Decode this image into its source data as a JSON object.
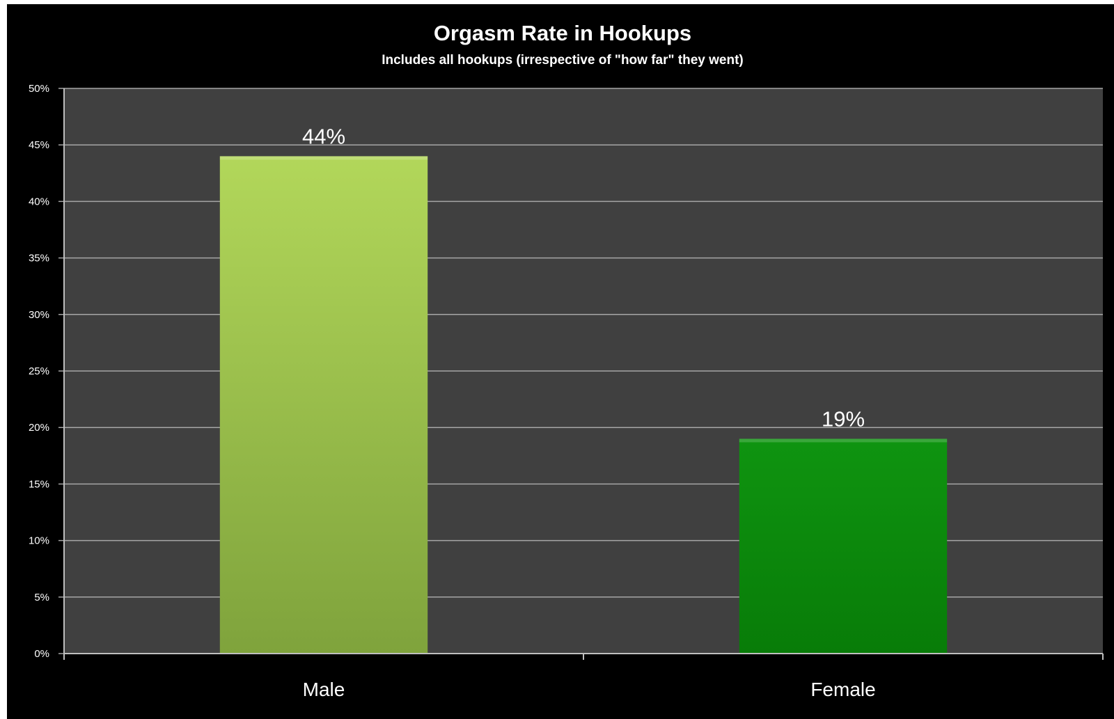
{
  "chart_data": {
    "type": "bar",
    "title": "Orgasm Rate in Hookups",
    "subtitle": "Includes all hookups (irrespective of \"how far\" they went)",
    "categories": [
      "Male",
      "Female"
    ],
    "values": [
      44,
      19
    ],
    "data_labels": [
      "44%",
      "19%"
    ],
    "ylim": [
      0,
      50
    ],
    "yticks": [
      0,
      5,
      10,
      15,
      20,
      25,
      30,
      35,
      40,
      45,
      50
    ],
    "ytick_labels": [
      "0%",
      "5%",
      "10%",
      "15%",
      "20%",
      "25%",
      "30%",
      "35%",
      "40%",
      "45%",
      "50%"
    ],
    "xlabel": "",
    "ylabel": "",
    "grid": true,
    "legend": "none",
    "colors": {
      "background": "#000000",
      "plot_area": "#404040",
      "gridline": "#a6a6a6",
      "bar_colors": [
        "#9bc64a",
        "#0a8a0a"
      ],
      "text": "#ffffff"
    }
  }
}
